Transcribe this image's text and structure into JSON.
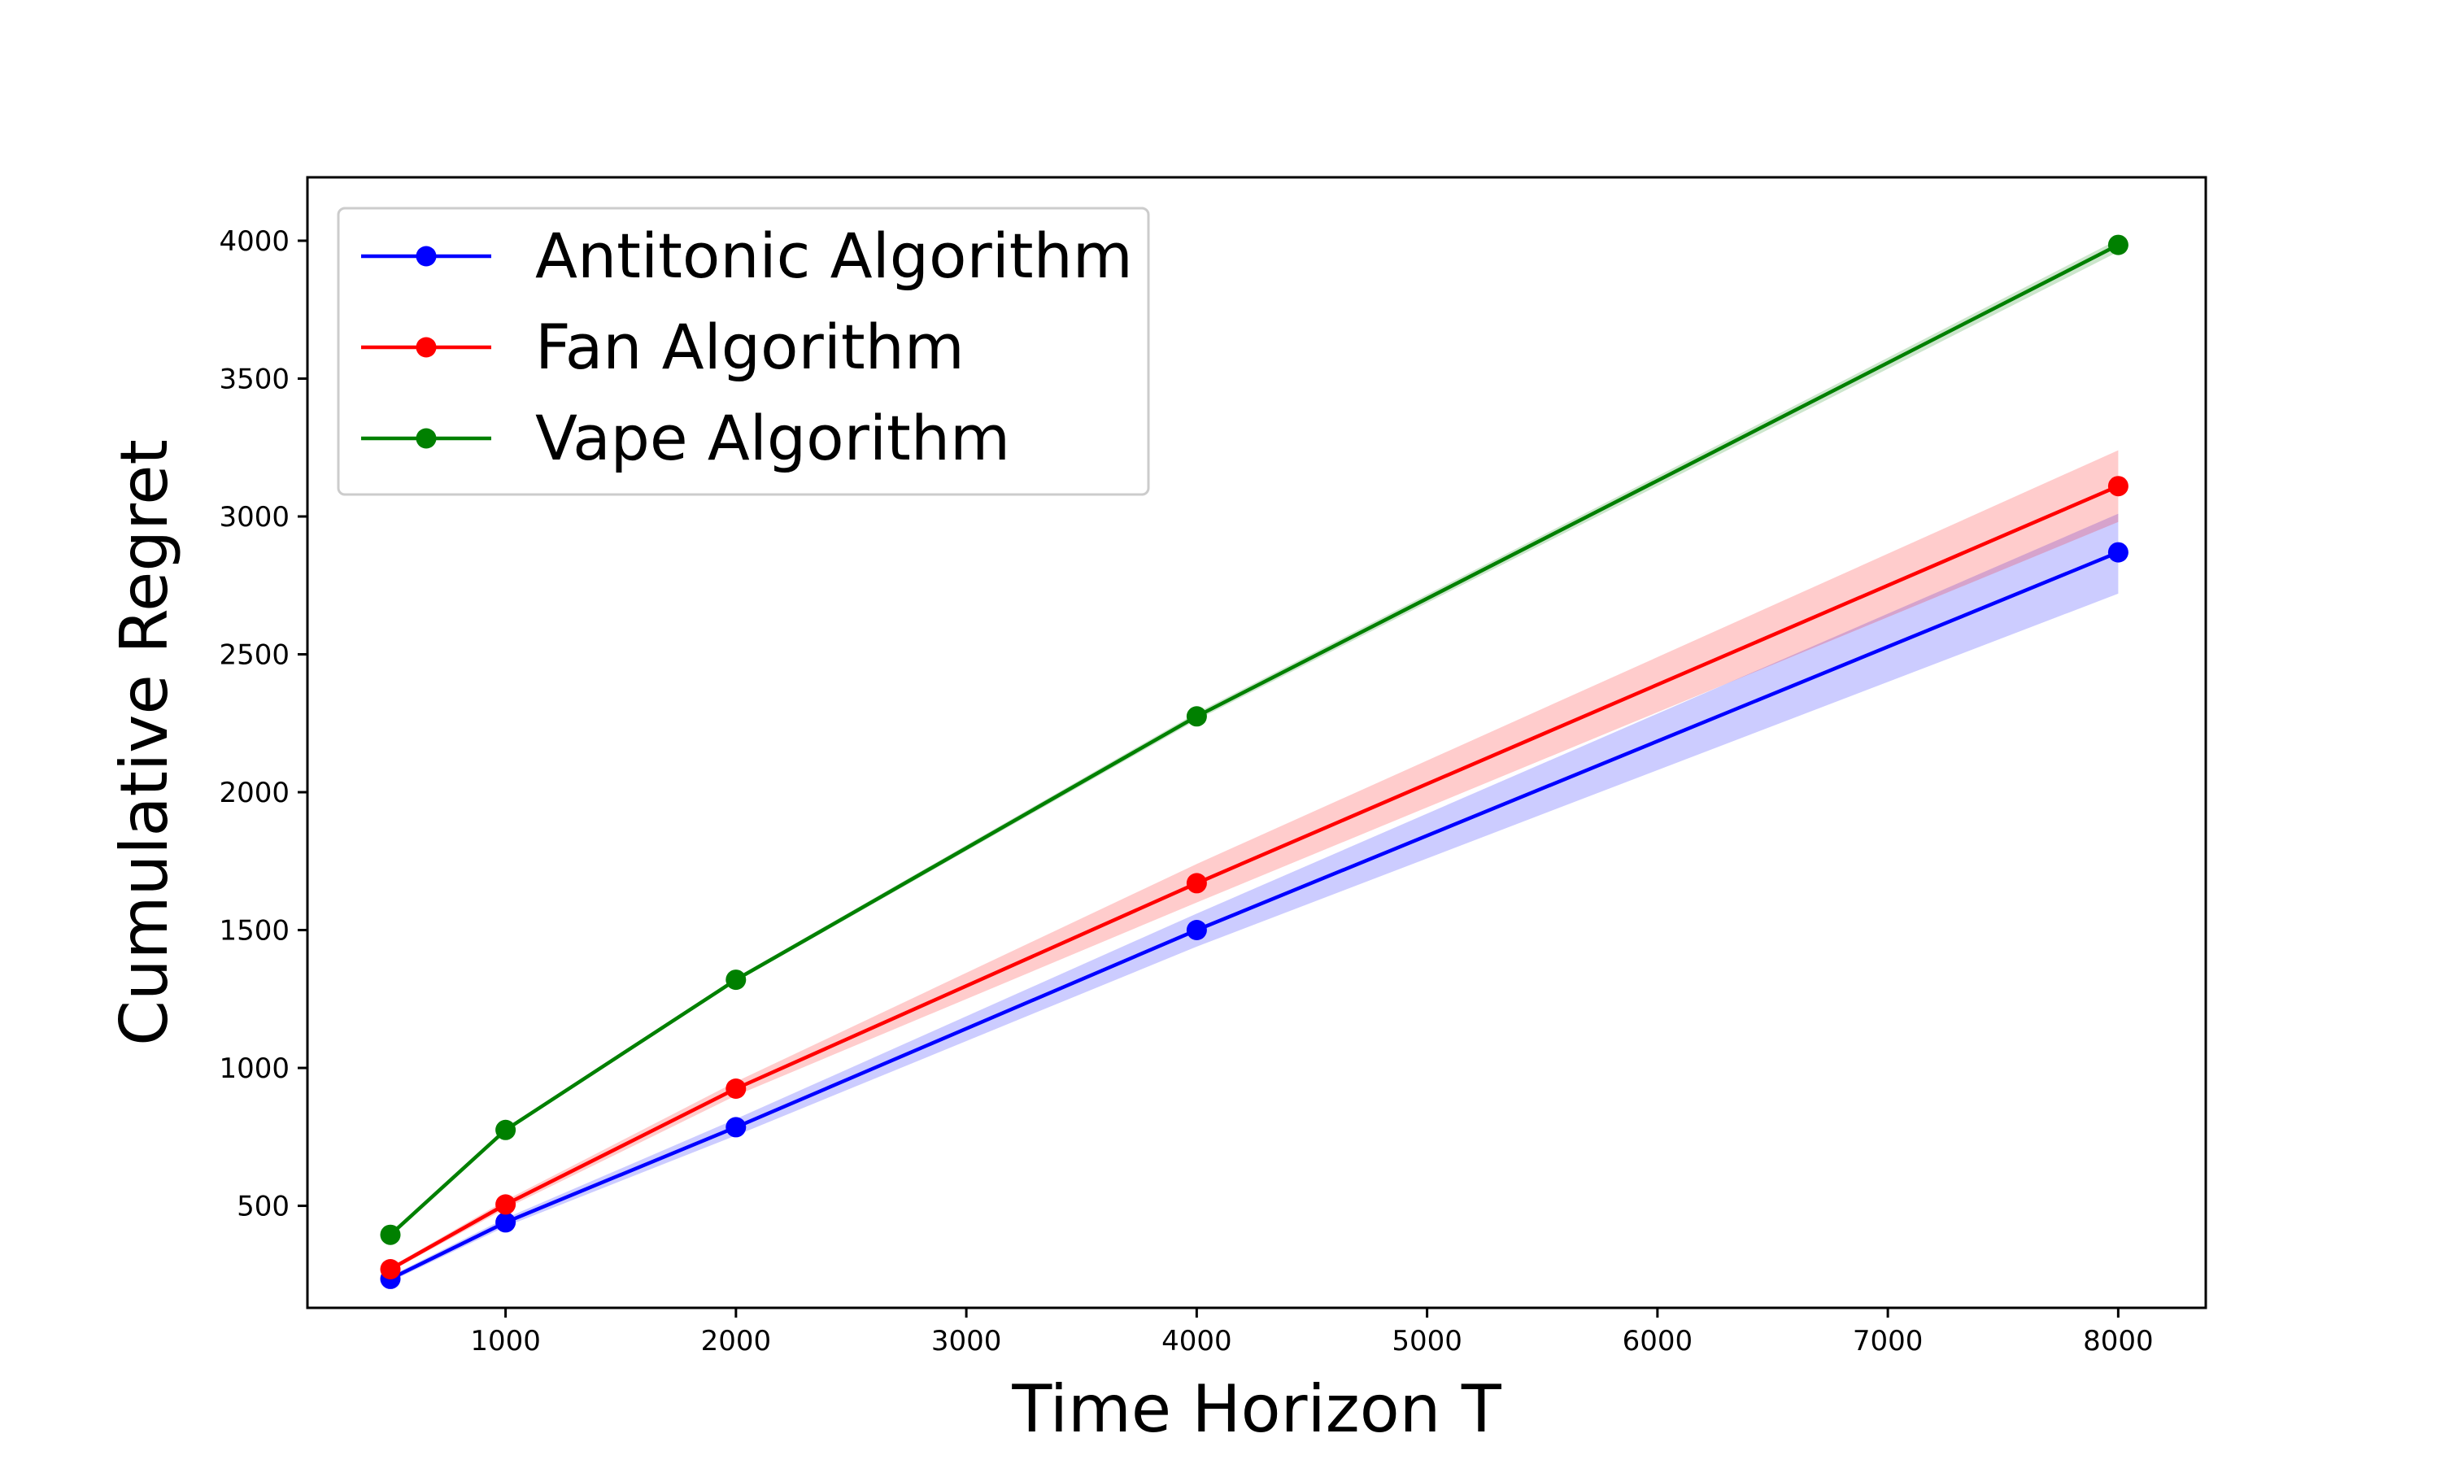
{
  "chart_data": {
    "type": "line",
    "xlabel": "Time Horizon T",
    "ylabel": "Cumulative Regret",
    "xlim": [
      140,
      8380
    ],
    "ylim": [
      130,
      4230
    ],
    "xticks": [
      1000,
      2000,
      3000,
      4000,
      5000,
      6000,
      7000,
      8000
    ],
    "yticks": [
      500,
      1000,
      1500,
      2000,
      2500,
      3000,
      3500,
      4000
    ],
    "grid": false,
    "legend_position": "top-left",
    "x": [
      500,
      1000,
      2000,
      4000,
      8000
    ],
    "series": [
      {
        "name": "Antitonic Algorithm",
        "color": "#0000ff",
        "values": [
          235,
          440,
          785,
          1500,
          2870
        ],
        "lower": [
          225,
          425,
          755,
          1440,
          2720
        ],
        "upper": [
          245,
          455,
          815,
          1560,
          3010
        ]
      },
      {
        "name": "Fan Algorithm",
        "color": "#ff0000",
        "values": [
          270,
          505,
          925,
          1670,
          3110
        ],
        "lower": [
          262,
          490,
          900,
          1600,
          2980
        ],
        "upper": [
          278,
          520,
          950,
          1740,
          3240
        ]
      },
      {
        "name": "Vape Algorithm",
        "color": "#008000",
        "values": [
          395,
          775,
          1320,
          2275,
          3985
        ],
        "lower": [
          390,
          768,
          1312,
          2262,
          3960
        ],
        "upper": [
          400,
          782,
          1328,
          2288,
          4005
        ]
      }
    ]
  }
}
